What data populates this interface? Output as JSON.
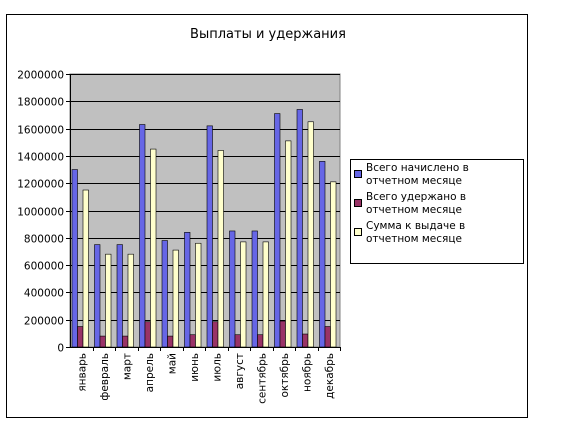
{
  "chart_data": {
    "type": "bar",
    "title": "Выплаты и удержания",
    "categories": [
      "январь",
      "февраль",
      "март",
      "апрель",
      "май",
      "июнь",
      "июль",
      "август",
      "сентябрь",
      "октябрь",
      "ноябрь",
      "декабрь"
    ],
    "ylim": [
      0,
      2000000
    ],
    "yticks": [
      0,
      200000,
      400000,
      600000,
      800000,
      1000000,
      1200000,
      1400000,
      1600000,
      1800000,
      2000000
    ],
    "ytick_labels": [
      "0",
      "200000",
      "400000",
      "600000",
      "800000",
      "1000000",
      "1200000",
      "1400000",
      "1600000",
      "1800000",
      "2000000"
    ],
    "grid": true,
    "legend_position": "right",
    "plot_background": "#c0c0c0",
    "series": [
      {
        "name": "Всего начислено в  отчетном месяце",
        "color": "#6666e6",
        "values": [
          1300000,
          750000,
          750000,
          1630000,
          780000,
          840000,
          1620000,
          850000,
          850000,
          1710000,
          1740000,
          1360000
        ]
      },
      {
        "name": "Всего удержано в  отчетном месяце",
        "color": "#993366",
        "values": [
          150000,
          80000,
          80000,
          185000,
          80000,
          90000,
          185000,
          90000,
          90000,
          190000,
          95000,
          150000
        ]
      },
      {
        "name": "Сумма к выдаче в  отчетном месяце",
        "color": "#ffffcc",
        "values": [
          1150000,
          680000,
          680000,
          1450000,
          710000,
          760000,
          1440000,
          770000,
          770000,
          1510000,
          1650000,
          1210000
        ]
      }
    ]
  }
}
